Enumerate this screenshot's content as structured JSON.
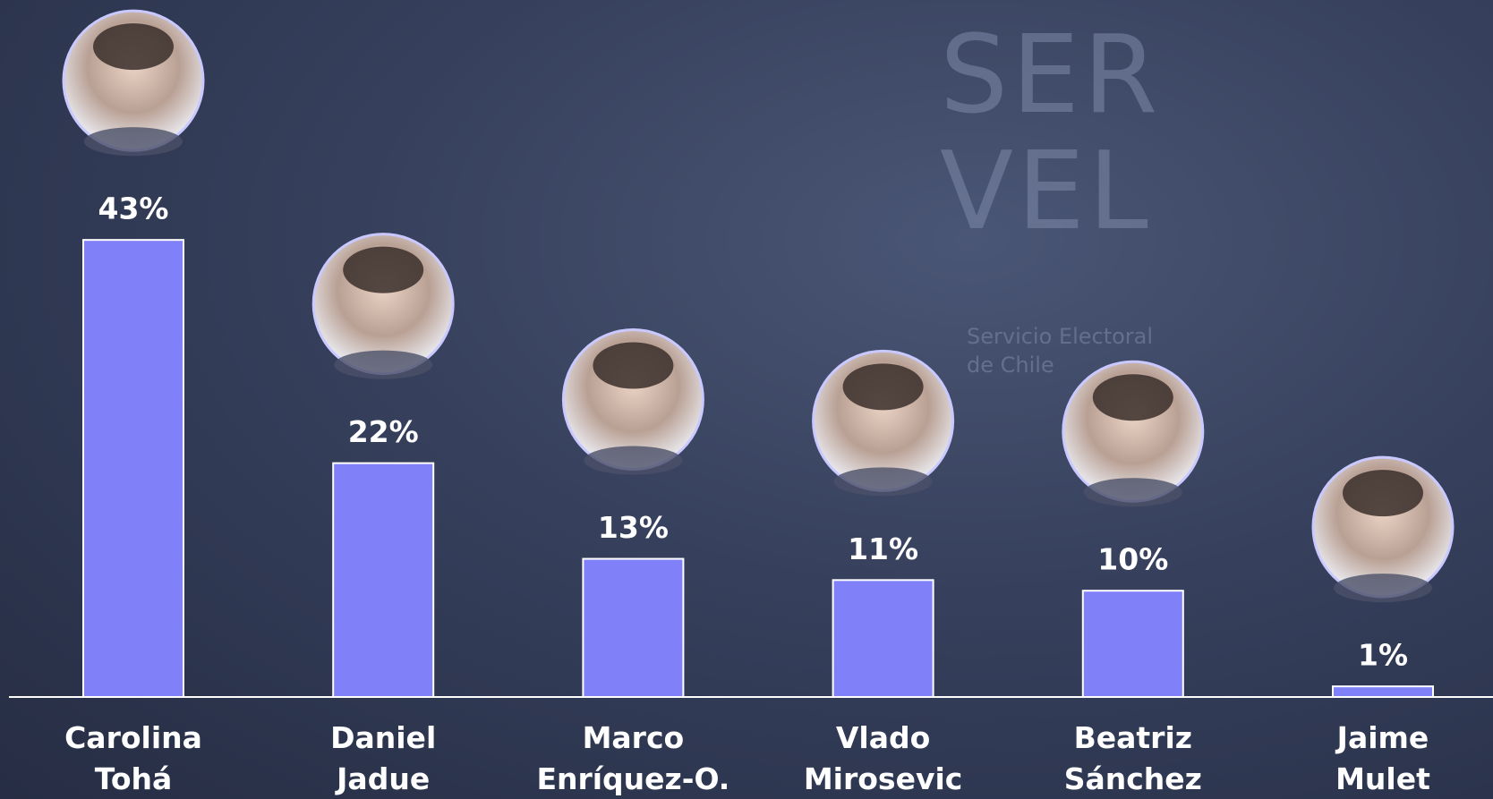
{
  "background_photo": {
    "logo": "SER\nVEL",
    "caption": "Servicio Electoral de Chile"
  },
  "chart_data": {
    "type": "bar",
    "categories": [
      "Carolina\nTohá",
      "Daniel\nJadue",
      "Marco\nEnríquez-O.",
      "Vlado\nMirosevic",
      "Beatriz\nSánchez",
      "Jaime\nMulet"
    ],
    "values": [
      43,
      22,
      13,
      11,
      10,
      1
    ],
    "value_labels": [
      "43%",
      "22%",
      "13%",
      "11%",
      "10%",
      "1%"
    ],
    "color": "#8080f8"
  }
}
